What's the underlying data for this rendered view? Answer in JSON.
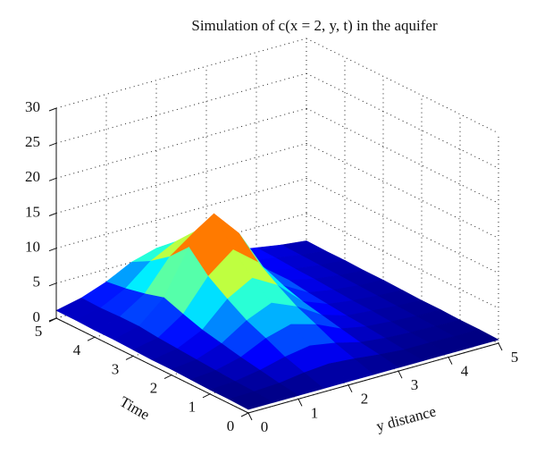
{
  "chart_data": {
    "type": "surface",
    "title": "Simulation of c(x = 2, y, t) in the aquifer",
    "xlabel": "y distance",
    "ylabel": "Time",
    "colormap": "jet",
    "grid": true,
    "x": [
      0,
      0.5,
      1,
      1.5,
      2,
      2.5,
      3,
      3.5,
      4,
      4.5,
      5
    ],
    "y": [
      0,
      0.5,
      1,
      1.5,
      2,
      2.5,
      3,
      3.5,
      4,
      4.5,
      5
    ],
    "z": [
      [
        0.5,
        0.5,
        0.5,
        0.5,
        0.5,
        0.5,
        0.5,
        0.5,
        0.5,
        0.5,
        0.5
      ],
      [
        0.6,
        0.7,
        0.9,
        1.4,
        1.7,
        1.4,
        1.0,
        0.7,
        0.7,
        0.6,
        0.6
      ],
      [
        0.6,
        0.8,
        1.4,
        2.3,
        2.9,
        2.3,
        1.4,
        1.0,
        0.8,
        0.7,
        0.6
      ],
      [
        0.7,
        1.0,
        1.9,
        3.6,
        4.6,
        3.6,
        2.0,
        1.3,
        1.0,
        0.8,
        0.7
      ],
      [
        0.8,
        1.2,
        2.5,
        4.8,
        6.3,
        4.8,
        2.6,
        1.5,
        1.2,
        0.9,
        0.7
      ],
      [
        0.8,
        1.4,
        3.1,
        6.5,
        8.5,
        6.5,
        3.2,
        1.8,
        1.3,
        1.0,
        0.8
      ],
      [
        0.9,
        1.6,
        4.0,
        8.4,
        11.2,
        8.4,
        4.1,
        2.1,
        1.5,
        1.1,
        0.9
      ],
      [
        1.0,
        1.9,
        5.0,
        11.2,
        15.0,
        11.2,
        5.2,
        2.5,
        1.7,
        1.2,
        0.9
      ],
      [
        1.0,
        1.9,
        4.2,
        8.5,
        11.1,
        8.5,
        4.3,
        2.5,
        1.8,
        1.3,
        1.0
      ],
      [
        1.1,
        1.8,
        3.6,
        6.5,
        8.3,
        6.5,
        3.8,
        2.6,
        2.0,
        1.4,
        1.0
      ],
      [
        1.1,
        1.9,
        3.2,
        5.0,
        6.0,
        5.0,
        3.4,
        2.7,
        2.1,
        1.5,
        1.1
      ]
    ],
    "xlim": [
      0,
      5
    ],
    "ylim": [
      0,
      5
    ],
    "zlim": [
      0,
      30
    ],
    "xticks": [
      0,
      1,
      2,
      3,
      4,
      5
    ],
    "yticks": [
      0,
      1,
      2,
      3,
      4,
      5
    ],
    "zticks": [
      0,
      5,
      10,
      15,
      20,
      25,
      30
    ]
  }
}
